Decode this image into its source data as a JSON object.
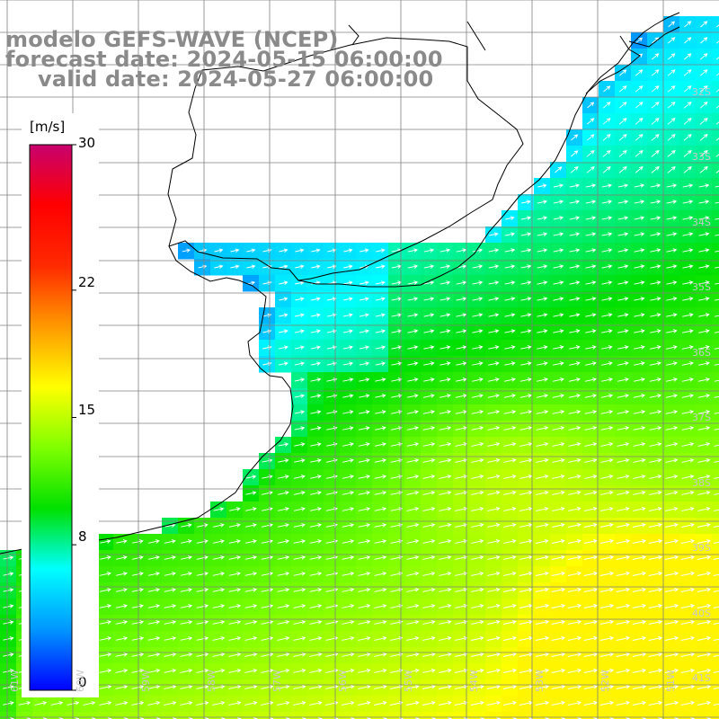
{
  "title": {
    "model": "modelo GEFS-WAVE (NCEP)",
    "forecast": "forecast date: 2024-05-15 06:00:00",
    "valid": "valid date: 2024-05-27 06:00:00"
  },
  "colorbar": {
    "unit": "[m/s]",
    "ticks": [
      {
        "label": "30",
        "value": 30
      },
      {
        "label": "22",
        "value": 22
      },
      {
        "label": "15",
        "value": 15
      },
      {
        "label": "8",
        "value": 8
      },
      {
        "label": "0",
        "value": 0
      }
    ],
    "range": [
      0,
      30
    ],
    "stops": [
      "#0000ff",
      "#0096ff",
      "#00ffff",
      "#00e000",
      "#7fff00",
      "#ffff00",
      "#ff9900",
      "#ff2a00",
      "#ff0000",
      "#c8006e"
    ]
  },
  "lat_labels": [
    "32S",
    "33S",
    "34S",
    "35S",
    "36S",
    "37S",
    "38S",
    "39S",
    "40S",
    "41S"
  ],
  "lon_labels": [
    "61W",
    "60W",
    "59W",
    "58W",
    "57W",
    "56W",
    "55W",
    "54W",
    "53W",
    "52W",
    "51W"
  ],
  "colors": {
    "land": "#ffffff",
    "coast": "#000000",
    "grid": "#808080",
    "arrows": "#ffffff",
    "title": "#8a8a8a"
  },
  "field": {
    "quantity": "wind speed",
    "unit": "m/s",
    "arrow_direction": "toward east-northeast",
    "speed_low": "about 2-5 m/s near the coast and upper right",
    "speed_high": "about 15-17 m/s in the lower right"
  }
}
